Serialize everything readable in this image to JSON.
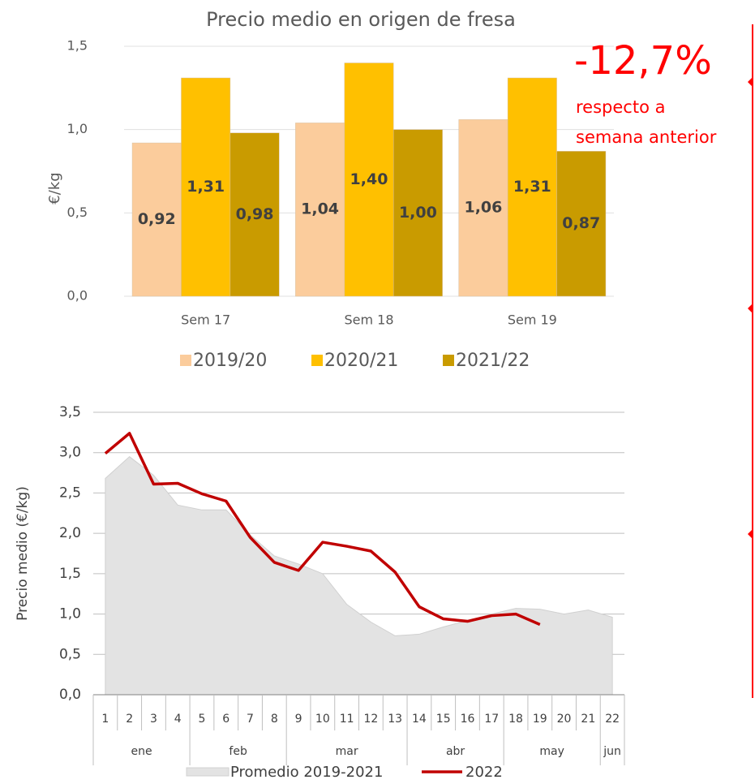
{
  "chart_data": [
    {
      "type": "bar",
      "title": "Precio medio en origen de fresa",
      "y_label": "€/kg",
      "categories": [
        "Sem 17",
        "Sem 18",
        "Sem 19"
      ],
      "series": [
        {
          "name": "2019/20",
          "color": "#fbcc9c",
          "values": [
            0.92,
            1.04,
            1.06
          ],
          "value_labels": [
            "0,92",
            "1,04",
            "1,06"
          ]
        },
        {
          "name": "2020/21",
          "color": "#ffc000",
          "values": [
            1.31,
            1.4,
            1.31
          ],
          "value_labels": [
            "1,31",
            "1,40",
            "1,31"
          ]
        },
        {
          "name": "2021/22",
          "color": "#c99b00",
          "values": [
            0.98,
            1.0,
            0.87
          ],
          "value_labels": [
            "0,98",
            "1,00",
            "0,87"
          ]
        }
      ],
      "ylim": [
        0,
        1.5
      ],
      "yticks": [
        {
          "value": 0,
          "label": "0,0"
        },
        {
          "value": 0.5,
          "label": "0,5"
        },
        {
          "value": 1,
          "label": "1,0"
        },
        {
          "value": 1.5,
          "label": "1,5"
        }
      ],
      "grid": true,
      "annotations": [
        "-12,7%",
        "respecto a",
        "semana anterior"
      ]
    },
    {
      "type": "line",
      "y_label": "Precio medio (€/kg)",
      "categories": [
        "1",
        "2",
        "3",
        "4",
        "5",
        "6",
        "7",
        "8",
        "9",
        "10",
        "11",
        "12",
        "13",
        "14",
        "15",
        "16",
        "17",
        "18",
        "19",
        "20",
        "21",
        "22"
      ],
      "groups": [
        {
          "label": "ene",
          "count": 4
        },
        {
          "label": "feb",
          "count": 4
        },
        {
          "label": "mar",
          "count": 5
        },
        {
          "label": "abr",
          "count": 4
        },
        {
          "label": "may",
          "count": 4
        },
        {
          "label": "jun",
          "count": 1
        }
      ],
      "series": [
        {
          "name": "Promedio 2019-2021",
          "style": "area",
          "color": "#e3e3e3",
          "values": [
            2.68,
            2.95,
            2.72,
            2.35,
            2.29,
            2.29,
            1.98,
            1.72,
            1.62,
            1.5,
            1.12,
            0.9,
            0.73,
            0.75,
            0.84,
            0.92,
            1.0,
            1.07,
            1.06,
            1.0,
            1.05,
            0.96
          ]
        },
        {
          "name": "2022",
          "style": "line",
          "color": "#c00000",
          "values": [
            2.99,
            3.24,
            2.61,
            2.62,
            2.49,
            2.4,
            1.95,
            1.64,
            1.54,
            1.89,
            1.84,
            1.78,
            1.52,
            1.09,
            0.94,
            0.91,
            0.98,
            1.0,
            0.87,
            null,
            null,
            null
          ]
        }
      ],
      "ylim": [
        0,
        3.5
      ],
      "yticks": [
        {
          "value": 0,
          "label": "0,0"
        },
        {
          "value": 0.5,
          "label": "0,5"
        },
        {
          "value": 1,
          "label": "1,0"
        },
        {
          "value": 1.5,
          "label": "1,5"
        },
        {
          "value": 2,
          "label": "2,0"
        },
        {
          "value": 2.5,
          "label": "2,5"
        },
        {
          "value": 3,
          "label": "3,0"
        },
        {
          "value": 3.5,
          "label": "3,5"
        }
      ],
      "grid": true
    }
  ]
}
